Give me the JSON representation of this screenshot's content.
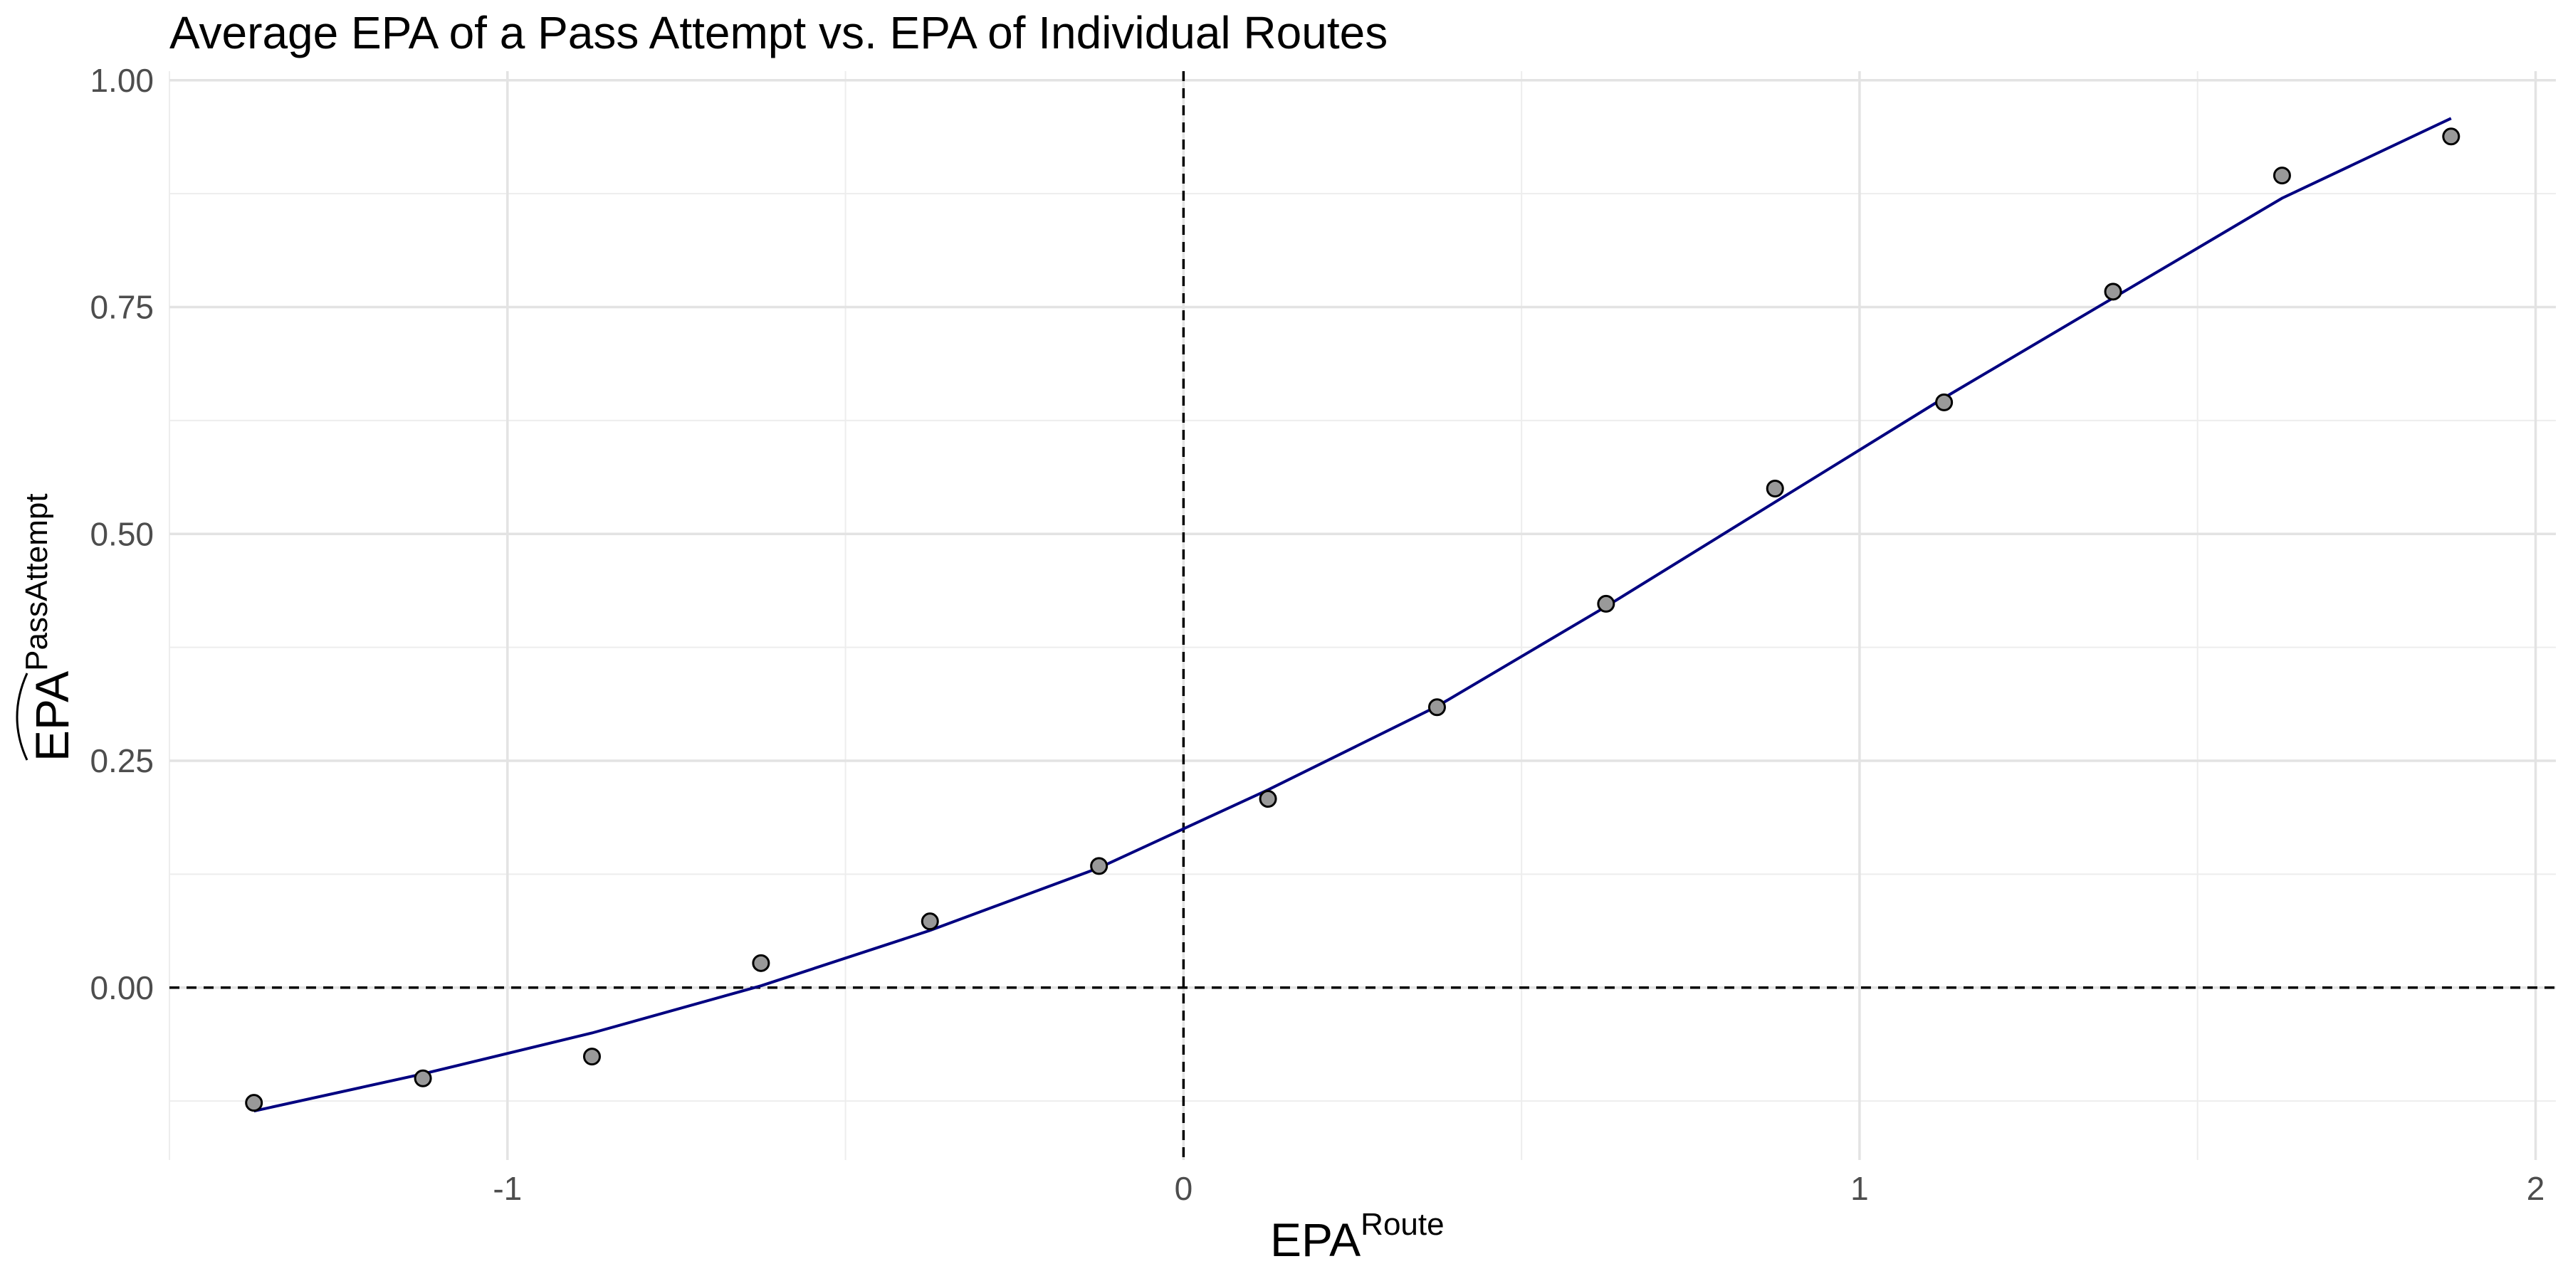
{
  "chart_data": {
    "type": "scatter",
    "title": "Average EPA of a Pass Attempt vs. EPA of Individual Routes",
    "xlabel": "EPA",
    "xlabel_superscript": "Route",
    "ylabel": "EPA",
    "ylabel_superscript": "PassAttempt",
    "ylabel_has_hat": true,
    "xlim": [
      -1.5,
      2.03
    ],
    "ylim": [
      -0.19,
      1.01
    ],
    "x_ticks": [
      -1,
      0,
      1,
      2
    ],
    "x_tick_labels": [
      "-1",
      "0",
      "1",
      "2"
    ],
    "y_ticks": [
      0.0,
      0.25,
      0.5,
      0.75,
      1.0
    ],
    "y_tick_labels": [
      "0.00",
      "0.25",
      "0.50",
      "0.75",
      "1.00"
    ],
    "grid": true,
    "reference_lines": [
      {
        "orientation": "vertical",
        "value": 0,
        "style": "dashed"
      },
      {
        "orientation": "horizontal",
        "value": 0,
        "style": "dashed"
      }
    ],
    "series": [
      {
        "name": "points",
        "kind": "scatter",
        "color": "#999999",
        "x": [
          -1.375,
          -1.125,
          -0.875,
          -0.625,
          -0.375,
          -0.125,
          0.125,
          0.375,
          0.625,
          0.875,
          1.125,
          1.375,
          1.625,
          1.875
        ],
        "y": [
          -0.127,
          -0.1,
          -0.076,
          0.027,
          0.073,
          0.134,
          0.208,
          0.309,
          0.423,
          0.55,
          0.645,
          0.767,
          0.895,
          0.938
        ]
      },
      {
        "name": "fit",
        "kind": "line",
        "color": "#000080",
        "x": [
          -1.375,
          -1.125,
          -0.875,
          -0.625,
          -0.375,
          -0.125,
          0,
          0.125,
          0.375,
          0.625,
          0.875,
          1.125,
          1.375,
          1.625,
          1.875
        ],
        "y": [
          -0.136,
          -0.095,
          -0.05,
          0.002,
          0.063,
          0.132,
          0.175,
          0.218,
          0.31,
          0.42,
          0.535,
          0.65,
          0.76,
          0.87,
          0.958
        ]
      }
    ]
  }
}
